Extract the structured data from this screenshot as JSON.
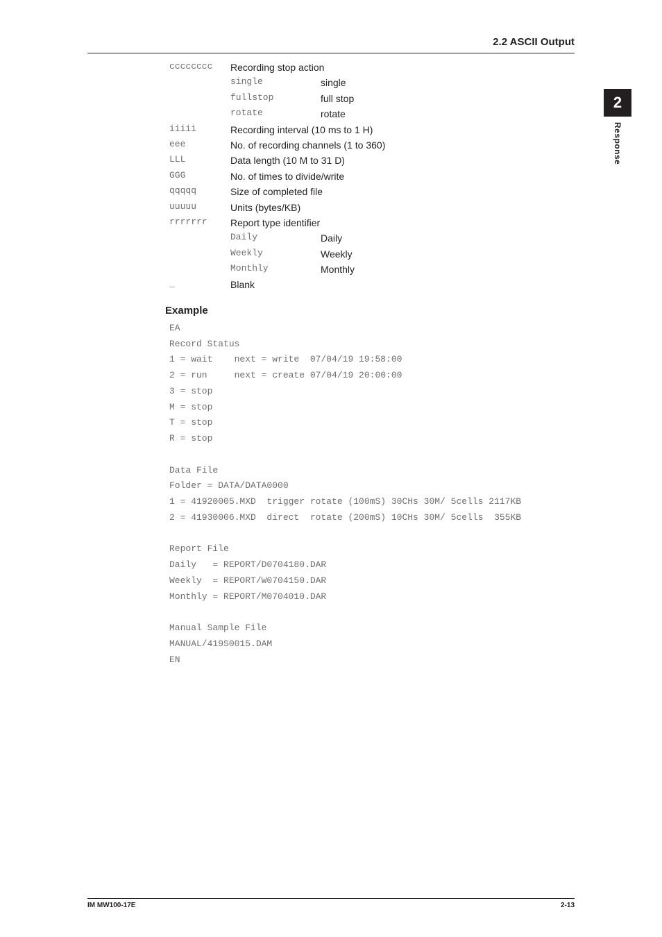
{
  "header": {
    "section": "2.2  ASCII Output"
  },
  "chapter_tab": {
    "number": "2",
    "label": "Response"
  },
  "defs": [
    {
      "key": "cccccccc",
      "val": "Recording stop action",
      "subs": [
        {
          "k": "single",
          "v": "single"
        },
        {
          "k": "fullstop",
          "v": "full stop"
        },
        {
          "k": "rotate",
          "v": "rotate"
        }
      ]
    },
    {
      "key": "iiiii",
      "val": "Recording interval (10 ms to 1 H)"
    },
    {
      "key": "eee",
      "val": "No. of recording channels (1 to 360)"
    },
    {
      "key": "LLL",
      "val": "Data length (10 M to 31 D)"
    },
    {
      "key": "GGG",
      "val": "No. of times to divide/write"
    },
    {
      "key": "qqqqq",
      "val": "Size of completed file"
    },
    {
      "key": "uuuuu",
      "val": "Units (bytes/KB)"
    },
    {
      "key": "rrrrrrr",
      "val": "Report type identifier",
      "subs": [
        {
          "k": "Daily",
          "v": "Daily"
        },
        {
          "k": "Weekly",
          "v": "Weekly"
        },
        {
          "k": "Monthly",
          "v": "Monthly"
        }
      ]
    },
    {
      "key": "_",
      "val": "Blank"
    }
  ],
  "example_label": "Example",
  "example_text": "EA\nRecord Status\n1 = wait    next = write  07/04/19 19:58:00\n2 = run     next = create 07/04/19 20:00:00\n3 = stop\nM = stop\nT = stop\nR = stop\n\nData File\nFolder = DATA/DATA0000\n1 = 41920005.MXD  trigger rotate (100mS) 30CHs 30M/ 5cells 2117KB\n2 = 41930006.MXD  direct  rotate (200mS) 10CHs 30M/ 5cells  355KB\n\nReport File\nDaily   = REPORT/D0704180.DAR\nWeekly  = REPORT/W0704150.DAR\nMonthly = REPORT/M0704010.DAR\n\nManual Sample File\nMANUAL/419S0015.DAM\nEN",
  "footer": {
    "left": "IM MW100-17E",
    "right": "2-13"
  }
}
